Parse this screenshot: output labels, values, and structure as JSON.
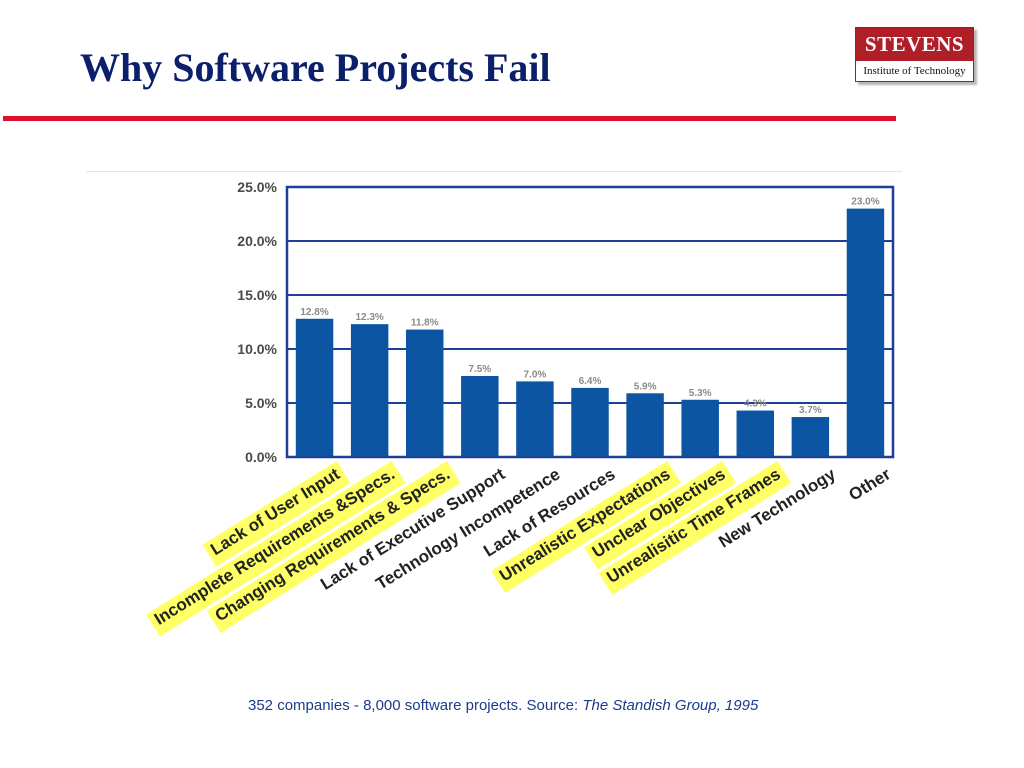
{
  "slide": {
    "title": "Why Software Projects Fail",
    "logo_name": "STEVENS",
    "logo_subtitle": "Institute of Technology",
    "footnote_text": "352 companies - 8,000 software projects.   Source: ",
    "footnote_source": "The Standish Group, 1995"
  },
  "chart_data": {
    "type": "bar",
    "categories": [
      "Lack of User Input",
      "Incomplete Requirements &Specs.",
      "Changing Requirements & Specs.",
      "Lack of Executive Support",
      "Technology Incompetence",
      "Lack of Resources",
      "Unrealistic Expectations",
      "Unclear Objectives",
      "Unrealisitic Time Frames",
      "New Technology",
      "Other"
    ],
    "values": [
      12.8,
      12.3,
      11.8,
      7.5,
      7.0,
      6.4,
      5.9,
      5.3,
      4.3,
      3.7,
      23.0
    ],
    "value_labels": [
      "12.8%",
      "12.3%",
      "11.8%",
      "7.5%",
      "7.0%",
      "6.4%",
      "5.9%",
      "5.3%",
      "4.3%",
      "3.7%",
      "23.0%"
    ],
    "highlighted": [
      true,
      true,
      true,
      false,
      false,
      false,
      true,
      true,
      true,
      false,
      false
    ],
    "y_ticks": [
      "0.0%",
      "5.0%",
      "10.0%",
      "15.0%",
      "20.0%",
      "25.0%"
    ],
    "ylim": [
      0,
      25
    ],
    "grid": true,
    "legend": "none",
    "colors": {
      "bar": "#0b55a3",
      "frame": "#1d3f99",
      "highlight": "#ffff66",
      "grid": "#1d3f99"
    }
  }
}
